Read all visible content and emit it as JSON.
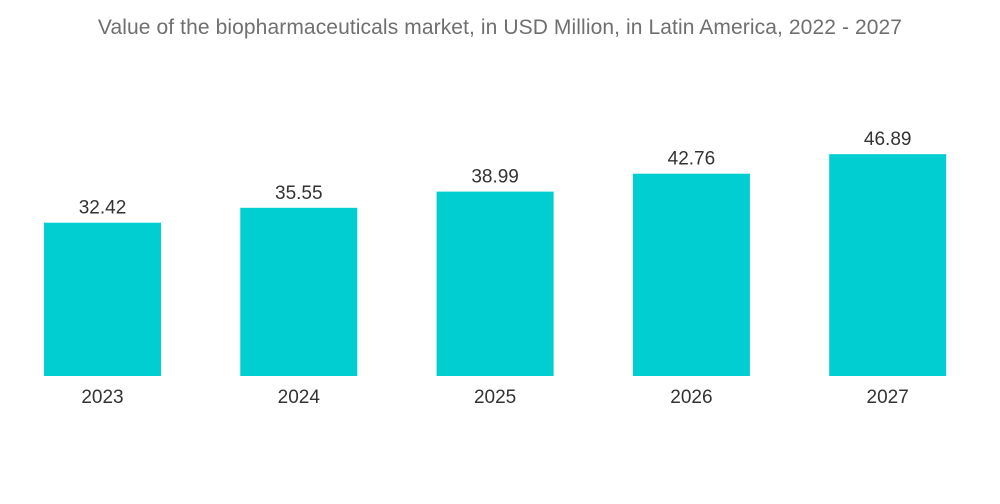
{
  "chart_data": {
    "type": "bar",
    "title": "Value of the biopharmaceuticals market, in USD Million, in Latin America, 2022 - 2027",
    "categories": [
      "2023",
      "2024",
      "2025",
      "2026",
      "2027"
    ],
    "values": [
      32.42,
      35.55,
      38.99,
      42.76,
      46.89
    ],
    "value_labels": [
      "32.42",
      "35.55",
      "38.99",
      "42.76",
      "46.89"
    ],
    "xlabel": "",
    "ylabel": "",
    "ylim": [
      0,
      50
    ],
    "grid": false,
    "legend": "none",
    "colors": {
      "bar": "#00ced1",
      "text": "#333333",
      "title": "#6f6f6f",
      "axis": "#9a9a9a"
    }
  }
}
